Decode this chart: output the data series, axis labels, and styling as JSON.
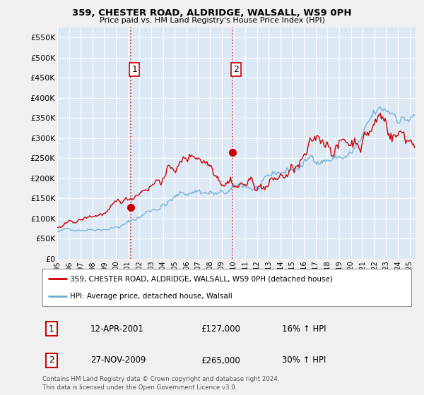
{
  "title": "359, CHESTER ROAD, ALDRIDGE, WALSALL, WS9 0PH",
  "subtitle": "Price paid vs. HM Land Registry's House Price Index (HPI)",
  "yticks": [
    0,
    50000,
    100000,
    150000,
    200000,
    250000,
    300000,
    350000,
    400000,
    450000,
    500000,
    550000
  ],
  "ylim": [
    0,
    575000
  ],
  "plot_bg_color": "#dce9f5",
  "fig_bg_color": "#f0f0f0",
  "grid_color": "#c8d8e8",
  "sale1_date_x": 2001.28,
  "sale1_price": 127000,
  "sale2_date_x": 2009.91,
  "sale2_price": 265000,
  "sale1_label": "1",
  "sale2_label": "2",
  "marker_color": "#cc0000",
  "legend_line1": "359, CHESTER ROAD, ALDRIDGE, WALSALL, WS9 0PH (detached house)",
  "legend_line2": "HPI: Average price, detached house, Walsall",
  "table_entries": [
    {
      "num": "1",
      "date": "12-APR-2001",
      "price": "£127,000",
      "change": "16% ↑ HPI"
    },
    {
      "num": "2",
      "date": "27-NOV-2009",
      "price": "£265,000",
      "change": "30% ↑ HPI"
    }
  ],
  "footnote": "Contains HM Land Registry data © Crown copyright and database right 2024.\nThis data is licensed under the Open Government Licence v3.0.",
  "hpi_color": "#6baed6",
  "price_color": "#cc0000",
  "vline_color": "#cc0000",
  "xmin": 1995.0,
  "xmax": 2025.5
}
